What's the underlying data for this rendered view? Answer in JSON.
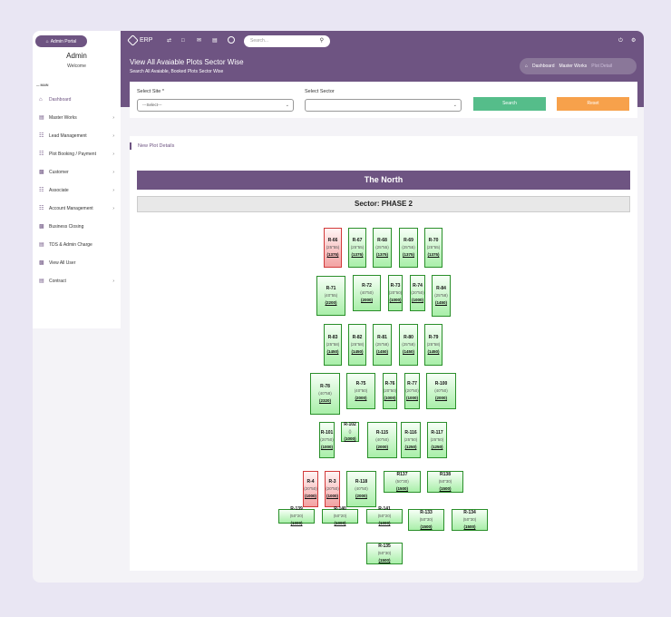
{
  "sidebar": {
    "portal_label": "Admin Portal",
    "user_name": "Admin",
    "welcome": "Welcome",
    "section_label": "MAIN",
    "items": [
      {
        "label": "Dashboard",
        "has_children": false,
        "active": true
      },
      {
        "label": "Master Works",
        "has_children": true,
        "active": false
      },
      {
        "label": "Lead Management",
        "has_children": true,
        "active": false
      },
      {
        "label": "Plot Booking / Payment",
        "has_children": true,
        "active": false
      },
      {
        "label": "Customer",
        "has_children": true,
        "active": false
      },
      {
        "label": "Associate",
        "has_children": true,
        "active": false
      },
      {
        "label": "Account Management",
        "has_children": true,
        "active": false
      },
      {
        "label": "Business Closing",
        "has_children": false,
        "active": false
      },
      {
        "label": "TDS & Admin Charge",
        "has_children": false,
        "active": false
      },
      {
        "label": "View All User",
        "has_children": false,
        "active": false
      },
      {
        "label": "Contract",
        "has_children": true,
        "active": false
      }
    ]
  },
  "topbar": {
    "app_name": "ERP",
    "search_placeholder": "Search..."
  },
  "banner": {
    "title": "View All Avaiable Plots Sector Wise",
    "subtitle": "Search All Avaiable, Booked Plots Sector Wise",
    "breadcrumbs": [
      "Dashboard",
      "Master Works",
      "Plot Detail"
    ]
  },
  "filters": {
    "site_label": "Select Site *",
    "site_value": "---Select---",
    "sector_label": "Select Sector",
    "sector_value": "",
    "search_label": "Search",
    "reset_label": "Reset"
  },
  "plots_section": {
    "heading": "New Plot Details",
    "site_name": "The North",
    "sector_title": "Sector: PHASE 2"
  },
  "colors": {
    "primary": "#6e5482",
    "available_border": "#2a8f2a",
    "booked_border": "#d23a3a",
    "search_button": "#55bd8a",
    "reset_button": "#f7a14b"
  },
  "plots": [
    {
      "id": "R-66",
      "dims": "(25\"55)",
      "area": "(1375)",
      "status": "booked"
    },
    {
      "id": "R-67",
      "dims": "(25\"55)",
      "area": "(1375)",
      "status": "available"
    },
    {
      "id": "R-68",
      "dims": "(25\"55)",
      "area": "(1375)",
      "status": "available"
    },
    {
      "id": "R-69",
      "dims": "(25\"55)",
      "area": "(1375)",
      "status": "available"
    },
    {
      "id": "R-70",
      "dims": "(25\"55)",
      "area": "(1375)",
      "status": "available"
    },
    {
      "id": "R-71",
      "dims": "(40\"55)",
      "area": "(2200)",
      "status": "available"
    },
    {
      "id": "R-72",
      "dims": "(40\"50)",
      "area": "(2000)",
      "status": "available"
    },
    {
      "id": "R-73",
      "dims": "(20\"50)",
      "area": "(1000)",
      "status": "available"
    },
    {
      "id": "R-74",
      "dims": "(20\"50)",
      "area": "(1000)",
      "status": "available"
    },
    {
      "id": "R-84",
      "dims": "(25\"58)",
      "area": "(1450)",
      "status": "available"
    },
    {
      "id": "R-83",
      "dims": "(25\"58)",
      "area": "(1450)",
      "status": "available"
    },
    {
      "id": "R-82",
      "dims": "(25\"58)",
      "area": "(1450)",
      "status": "available"
    },
    {
      "id": "R-81",
      "dims": "(25\"58)",
      "area": "(1450)",
      "status": "available"
    },
    {
      "id": "R-80",
      "dims": "(25\"58)",
      "area": "(1450)",
      "status": "available"
    },
    {
      "id": "R-79",
      "dims": "(25\"58)",
      "area": "(1450)",
      "status": "available"
    },
    {
      "id": "R-78",
      "dims": "(40\"58)",
      "area": "(2320)",
      "status": "available"
    },
    {
      "id": "R-75",
      "dims": "(40\"50)",
      "area": "(2000)",
      "status": "available"
    },
    {
      "id": "R-76",
      "dims": "(20\"50)",
      "area": "(1000)",
      "status": "available"
    },
    {
      "id": "R-77",
      "dims": "(20\"50)",
      "area": "(1000)",
      "status": "available"
    },
    {
      "id": "R-100",
      "dims": "(40\"50)",
      "area": "(2000)",
      "status": "available"
    },
    {
      "id": "R-101",
      "dims": "(20\"50)",
      "area": "(1000)",
      "status": "available"
    },
    {
      "id": "R-102",
      "dims": "()",
      "area": "(1000)",
      "status": "available"
    },
    {
      "id": "R-115",
      "dims": "(40\"50)",
      "area": "(2000)",
      "status": "available"
    },
    {
      "id": "R-116",
      "dims": "(25\"50)",
      "area": "(1250)",
      "status": "available"
    },
    {
      "id": "R-117",
      "dims": "(25\"50)",
      "area": "(1250)",
      "status": "available"
    },
    {
      "id": "R-4",
      "dims": "(20\"50)",
      "area": "(1000)",
      "status": "booked"
    },
    {
      "id": "R-3",
      "dims": "(20\"50)",
      "area": "(1000)",
      "status": "booked"
    },
    {
      "id": "R-118",
      "dims": "(40\"50)",
      "area": "(2000)",
      "status": "available"
    },
    {
      "id": "R137",
      "dims": "(50\"30)",
      "area": "(1500)",
      "status": "available"
    },
    {
      "id": "R138",
      "dims": "(50\"30)",
      "area": "(1500)",
      "status": "available"
    },
    {
      "id": "R-139",
      "dims": "(50\"20)",
      "area": "(1000)",
      "status": "available"
    },
    {
      "id": "R-140",
      "dims": "(50\"20)",
      "area": "(1000)",
      "status": "available"
    },
    {
      "id": "R-141",
      "dims": "(50\"20)",
      "area": "(1000)",
      "status": "available"
    },
    {
      "id": "R-133",
      "dims": "(50\"30)",
      "area": "(1500)",
      "status": "available"
    },
    {
      "id": "R-134",
      "dims": "(50\"30)",
      "area": "(1500)",
      "status": "available"
    },
    {
      "id": "R-135",
      "dims": "(50\"30)",
      "area": "(1500)",
      "status": "available"
    }
  ]
}
